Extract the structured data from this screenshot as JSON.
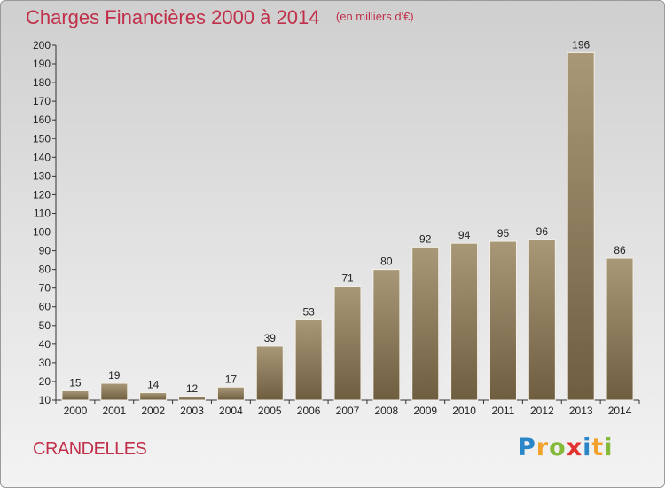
{
  "chart_data": {
    "type": "bar",
    "title": "Charges Financières 2000 à 2014",
    "subtitle": "(en milliers d'€)",
    "categories": [
      "2000",
      "2001",
      "2002",
      "2003",
      "2004",
      "2005",
      "2006",
      "2007",
      "2008",
      "2009",
      "2010",
      "2011",
      "2012",
      "2013",
      "2014"
    ],
    "values": [
      15,
      19,
      14,
      12,
      17,
      39,
      53,
      71,
      80,
      92,
      94,
      95,
      96,
      196,
      86
    ],
    "ylim": [
      10,
      200
    ],
    "yticks": [
      10,
      20,
      30,
      40,
      50,
      60,
      70,
      80,
      90,
      100,
      110,
      120,
      130,
      140,
      150,
      160,
      170,
      180,
      190,
      200
    ],
    "xlabel": "",
    "ylabel": "",
    "grid": false,
    "legend": "none",
    "bar_color_top": "#a89878",
    "bar_color_bottom": "#6f5d3f"
  },
  "footer": {
    "commune": "CRANDELLES",
    "logo_letters": [
      {
        "ch": "P",
        "color": "#2b86c8"
      },
      {
        "ch": "r",
        "color": "#f2a12c"
      },
      {
        "ch": "o",
        "color": "#84b93a"
      },
      {
        "ch": "x",
        "color": "#e2332e"
      },
      {
        "ch": "i",
        "color": "#2b86c8"
      },
      {
        "ch": "t",
        "color": "#f2a12c"
      },
      {
        "ch": "i",
        "color": "#84b93a"
      }
    ]
  },
  "colors": {
    "title": "#c0304a",
    "axis": "#333333"
  }
}
